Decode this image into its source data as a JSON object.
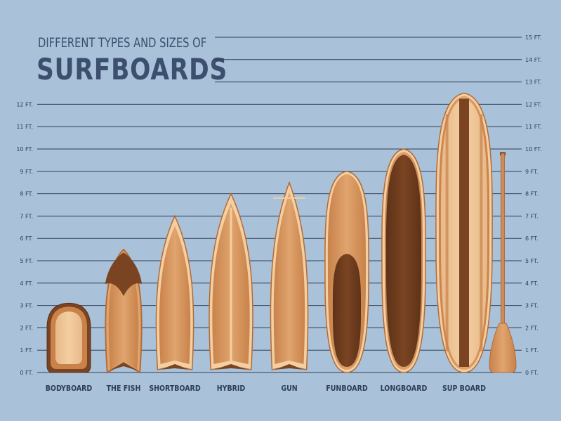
{
  "header": {
    "subtitle": "DIFFERENT TYPES AND SIZES OF",
    "title": "SURFBOARDS"
  },
  "colors": {
    "background": "#a9c2d9",
    "gridline": "#2f3d55",
    "text": "#3d4f6e",
    "wood_light": "#e0a46e",
    "wood_mid": "#c9824a",
    "wood_dark": "#7a4422",
    "wood_pale": "#f3cfa2"
  },
  "chart_data": {
    "type": "bar",
    "ylabel": "",
    "ylim": [
      0,
      15
    ],
    "y_unit": "FT.",
    "grid": true,
    "left_ticks": [
      "0 FT.",
      "1 FT.",
      "2 FT.",
      "3 FT.",
      "4 FT.",
      "5 FT.",
      "6 FT.",
      "7 FT.",
      "8 FT.",
      "9 FT.",
      "10 FT.",
      "11 FT.",
      "12 FT."
    ],
    "right_ticks": [
      "0 FT.",
      "1 FT.",
      "2 FT.",
      "3 FT.",
      "4 FT.",
      "5 FT.",
      "6 FT.",
      "7 FT.",
      "8 FT.",
      "9 FT.",
      "10 FT.",
      "11 FT.",
      "12 FT.",
      "13 FT.",
      "14 FT.",
      "15 FT."
    ],
    "categories": [
      "BODYBOARD",
      "THE FISH",
      "SHORTBOARD",
      "HYBRID",
      "GUN",
      "FUNBOARD",
      "LONGBOARD",
      "SUP BOARD"
    ],
    "values": [
      3.1,
      5.5,
      7.0,
      8.0,
      8.5,
      9.0,
      10.0,
      12.5
    ],
    "paddle_length": 9.8
  }
}
